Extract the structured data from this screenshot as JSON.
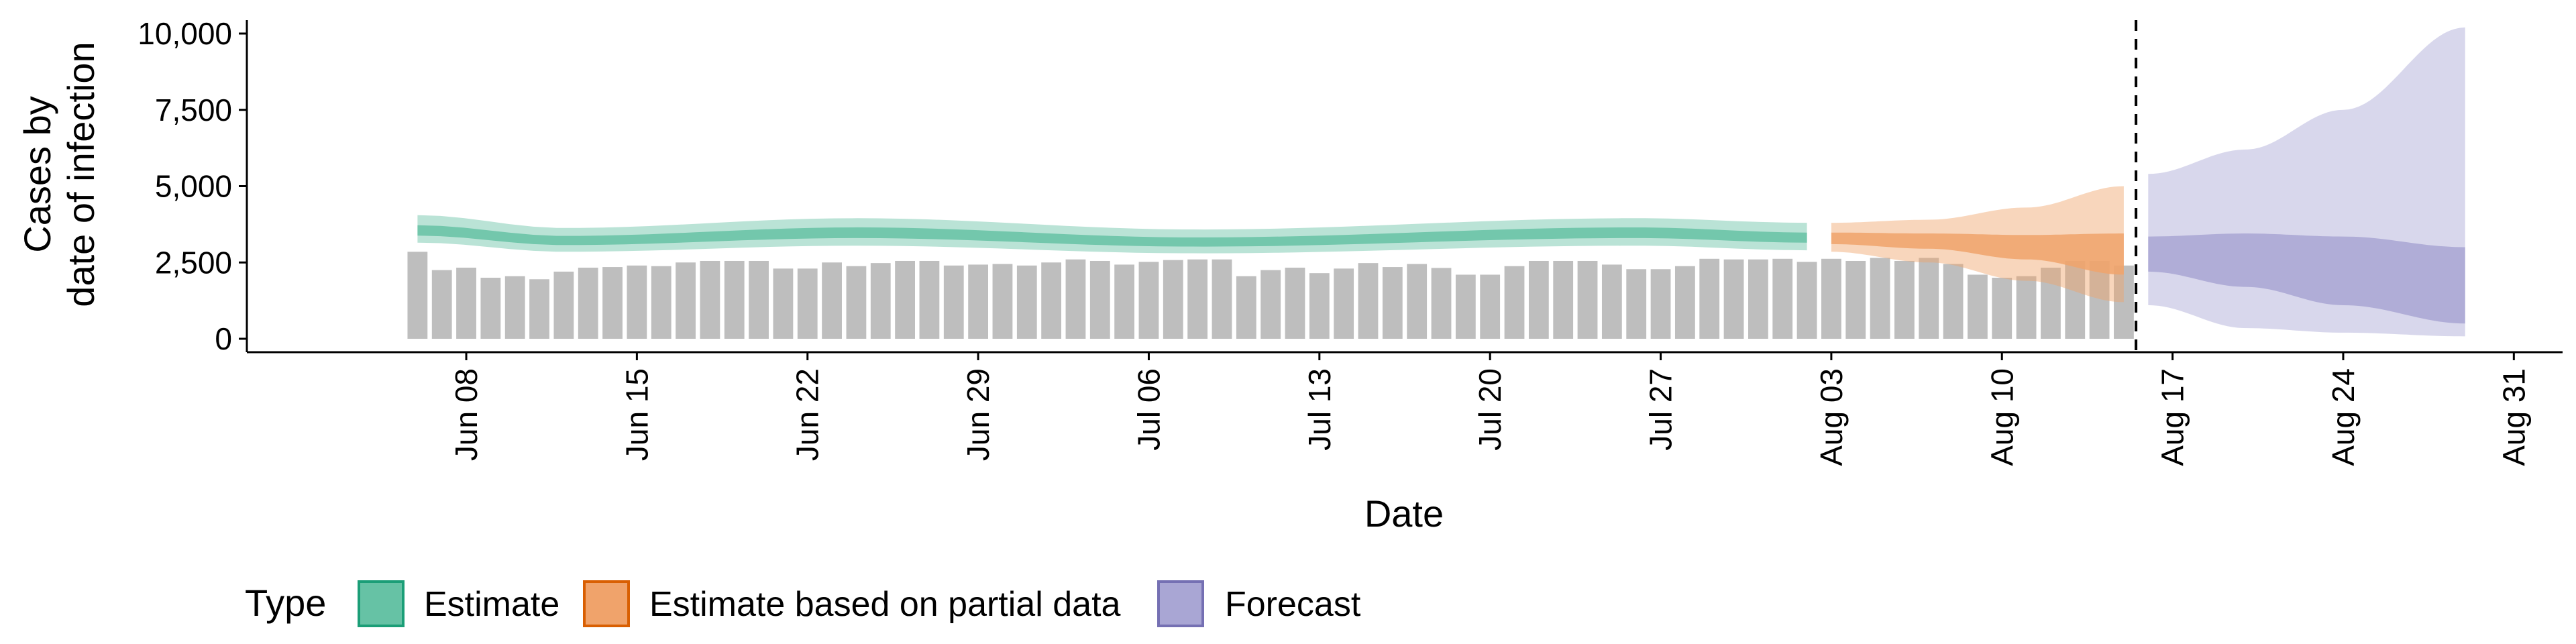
{
  "chart_data": {
    "type": "bar",
    "xlabel": "Date",
    "ylabel": [
      "Cases by",
      "date of infection"
    ],
    "ylim": [
      0,
      10000
    ],
    "yticks": [
      0,
      2500,
      5000,
      7500,
      10000
    ],
    "ytick_labels": [
      "0",
      "2,500",
      "5,000",
      "7,500",
      "10,000"
    ],
    "xlim": [
      "2020-05-30",
      "2020-09-02"
    ],
    "xticks": [
      "2020-06-08",
      "2020-06-15",
      "2020-06-22",
      "2020-06-29",
      "2020-07-06",
      "2020-07-13",
      "2020-07-20",
      "2020-07-27",
      "2020-08-03",
      "2020-08-10",
      "2020-08-17",
      "2020-08-24",
      "2020-08-31"
    ],
    "xtick_labels": [
      "Jun 08",
      "Jun 15",
      "Jun 22",
      "Jun 29",
      "Jul 06",
      "Jul 13",
      "Jul 20",
      "Jul 27",
      "Aug 03",
      "Aug 10",
      "Aug 17",
      "Aug 24",
      "Aug 31"
    ],
    "forecast_date": "2020-08-15",
    "grid": false,
    "legend_position": "bottom",
    "legend": {
      "title": "Type",
      "entries": [
        {
          "label": "Estimate",
          "fill": "#66c2a5",
          "stroke": "#1b9e77"
        },
        {
          "label": "Estimate based on partial data",
          "fill": "#f0a36b",
          "stroke": "#d95f02"
        },
        {
          "label": "Forecast",
          "fill": "#a9a6d4",
          "stroke": "#7570b3"
        }
      ]
    },
    "bar_color": "#bebebe",
    "bars": {
      "start_date": "2020-06-06",
      "values": [
        2850,
        2250,
        2330,
        2000,
        2050,
        1950,
        2200,
        2330,
        2350,
        2400,
        2380,
        2500,
        2550,
        2550,
        2550,
        2300,
        2300,
        2500,
        2380,
        2480,
        2550,
        2550,
        2400,
        2430,
        2450,
        2400,
        2500,
        2600,
        2550,
        2430,
        2520,
        2580,
        2600,
        2600,
        2050,
        2250,
        2330,
        2150,
        2300,
        2480,
        2350,
        2450,
        2320,
        2100,
        2100,
        2380,
        2550,
        2550,
        2550,
        2430,
        2280,
        2280,
        2380,
        2620,
        2600,
        2600,
        2620,
        2520,
        2620,
        2550,
        2650,
        2550,
        2650,
        2450,
        2100,
        2000,
        2050,
        2330,
        2550,
        2550,
        2400
      ]
    },
    "series": [
      {
        "name": "Estimate",
        "x_start": "2020-06-06",
        "x_end": "2020-08-02",
        "knots": [
          {
            "date": "2020-06-06",
            "lo90": 3150,
            "lo50": 3380,
            "median": 3550,
            "hi50": 3720,
            "hi90": 4050
          },
          {
            "date": "2020-06-12",
            "lo90": 2850,
            "lo50": 3070,
            "median": 3220,
            "hi50": 3370,
            "hi90": 3630
          },
          {
            "date": "2020-06-24",
            "lo90": 3050,
            "lo50": 3300,
            "median": 3480,
            "hi50": 3650,
            "hi90": 3950
          },
          {
            "date": "2020-07-08",
            "lo90": 2800,
            "lo50": 3020,
            "median": 3180,
            "hi50": 3320,
            "hi90": 3580
          },
          {
            "date": "2020-07-26",
            "lo90": 3050,
            "lo50": 3300,
            "median": 3480,
            "hi50": 3650,
            "hi90": 3950
          },
          {
            "date": "2020-08-02",
            "lo90": 2900,
            "lo50": 3150,
            "median": 3320,
            "hi50": 3480,
            "hi90": 3800
          }
        ]
      },
      {
        "name": "Estimate based on partial data",
        "x_start": "2020-08-03",
        "x_end": "2020-08-15",
        "knots": [
          {
            "date": "2020-08-03",
            "lo90": 2850,
            "lo50": 3100,
            "median": 3300,
            "hi50": 3480,
            "hi90": 3800
          },
          {
            "date": "2020-08-07",
            "lo90": 2500,
            "lo50": 2950,
            "median": 3200,
            "hi50": 3450,
            "hi90": 3900
          },
          {
            "date": "2020-08-11",
            "lo90": 1900,
            "lo50": 2600,
            "median": 3000,
            "hi50": 3400,
            "hi90": 4300
          },
          {
            "date": "2020-08-15",
            "lo90": 1200,
            "lo50": 2100,
            "median": 2700,
            "hi50": 3450,
            "hi90": 5000
          }
        ]
      },
      {
        "name": "Forecast",
        "x_start": "2020-08-16",
        "x_end": "2020-08-29",
        "knots": [
          {
            "date": "2020-08-16",
            "lo90": 1100,
            "lo50": 2200,
            "median": 2800,
            "hi50": 3350,
            "hi90": 5400
          },
          {
            "date": "2020-08-20",
            "lo90": 350,
            "lo50": 1700,
            "median": 2600,
            "hi50": 3450,
            "hi90": 6200
          },
          {
            "date": "2020-08-24",
            "lo90": 200,
            "lo50": 1100,
            "median": 2250,
            "hi50": 3350,
            "hi90": 7500
          },
          {
            "date": "2020-08-29",
            "lo90": 80,
            "lo50": 500,
            "median": 1800,
            "hi50": 3000,
            "hi90": 10200
          }
        ]
      }
    ]
  }
}
